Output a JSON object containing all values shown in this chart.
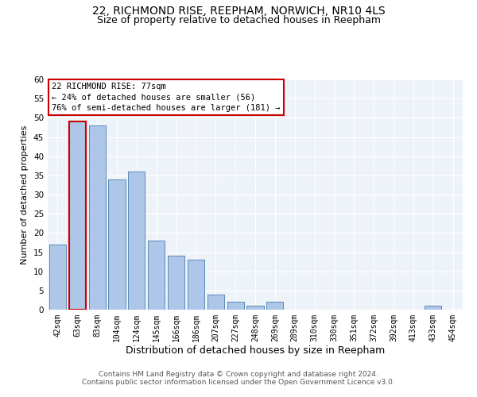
{
  "title_line1": "22, RICHMOND RISE, REEPHAM, NORWICH, NR10 4LS",
  "title_line2": "Size of property relative to detached houses in Reepham",
  "xlabel": "Distribution of detached houses by size in Reepham",
  "ylabel": "Number of detached properties",
  "categories": [
    "42sqm",
    "63sqm",
    "83sqm",
    "104sqm",
    "124sqm",
    "145sqm",
    "166sqm",
    "186sqm",
    "207sqm",
    "227sqm",
    "248sqm",
    "269sqm",
    "289sqm",
    "310sqm",
    "330sqm",
    "351sqm",
    "372sqm",
    "392sqm",
    "413sqm",
    "433sqm",
    "454sqm"
  ],
  "values": [
    17,
    49,
    48,
    34,
    36,
    18,
    14,
    13,
    4,
    2,
    1,
    2,
    0,
    0,
    0,
    0,
    0,
    0,
    0,
    1,
    0
  ],
  "bar_color": "#aec6e8",
  "bar_edge_color": "#5b8db8",
  "highlight_bar_index": 1,
  "highlight_bar_edge_color": "#cc0000",
  "ylim": [
    0,
    60
  ],
  "yticks": [
    0,
    5,
    10,
    15,
    20,
    25,
    30,
    35,
    40,
    45,
    50,
    55,
    60
  ],
  "annotation_box_text": "22 RICHMOND RISE: 77sqm\n← 24% of detached houses are smaller (56)\n76% of semi-detached houses are larger (181) →",
  "footer_line1": "Contains HM Land Registry data © Crown copyright and database right 2024.",
  "footer_line2": "Contains public sector information licensed under the Open Government Licence v3.0.",
  "bg_color": "#eef2f9",
  "grid_color": "#ffffff",
  "title_fontsize": 10,
  "subtitle_fontsize": 9,
  "annotation_fontsize": 7.5,
  "ylabel_fontsize": 8,
  "xlabel_fontsize": 9,
  "tick_fontsize": 7,
  "ytick_fontsize": 7.5
}
